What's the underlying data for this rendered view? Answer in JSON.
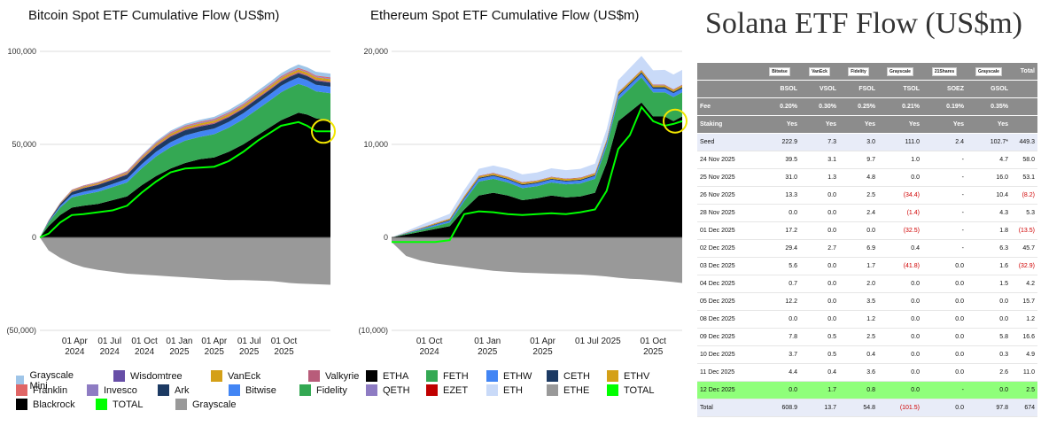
{
  "chart_data": [
    {
      "type": "area",
      "title": "Bitcoin Spot ETF Cumulative Flow (US$m)",
      "y_ticks": [
        "100,000",
        "50,000",
        "0",
        "(50,000)"
      ],
      "y_tick_values": [
        100000,
        50000,
        0,
        -50000
      ],
      "ylim": [
        -50000,
        100000
      ],
      "x_ticks": [
        [
          "01 Apr",
          "2024"
        ],
        [
          "01 Jul",
          "2024"
        ],
        [
          "01 Oct",
          "2024"
        ],
        [
          "01 Jan",
          "2025"
        ],
        [
          "01 Apr",
          "2025"
        ],
        [
          "01 Jul",
          "2025"
        ],
        [
          "01 Oct",
          "2025"
        ]
      ],
      "x_tick_values": [
        0.12,
        0.24,
        0.36,
        0.48,
        0.6,
        0.72,
        0.84
      ],
      "xlim": [
        0,
        1
      ],
      "x": [
        0,
        0.03,
        0.07,
        0.11,
        0.15,
        0.2,
        0.25,
        0.3,
        0.35,
        0.4,
        0.45,
        0.5,
        0.55,
        0.6,
        0.65,
        0.7,
        0.75,
        0.8,
        0.83,
        0.86,
        0.89,
        0.92,
        0.95,
        1.0
      ],
      "series": [
        {
          "name": "Blackrock",
          "color": "#000000",
          "values": [
            0,
            6000,
            12000,
            16000,
            17000,
            18000,
            20000,
            22000,
            28000,
            33000,
            37000,
            40000,
            42000,
            43000,
            46000,
            50000,
            55000,
            60000,
            63000,
            65000,
            67000,
            66000,
            64000,
            63000
          ]
        },
        {
          "name": "Fidelity",
          "color": "#34a853",
          "values": [
            0,
            2000,
            4000,
            5500,
            6000,
            6500,
            7000,
            7500,
            9000,
            10500,
            11500,
            12000,
            12000,
            12500,
            13000,
            13500,
            14000,
            14500,
            15000,
            15500,
            15500,
            15000,
            14500,
            14500
          ]
        },
        {
          "name": "Bitwise",
          "color": "#4285f4",
          "values": [
            0,
            400,
            900,
            1300,
            1500,
            1600,
            1700,
            1900,
            2200,
            2500,
            2700,
            2800,
            2900,
            3000,
            3100,
            3200,
            3300,
            3400,
            3500,
            3500,
            3500,
            3500,
            3500,
            3500
          ]
        },
        {
          "name": "Ark",
          "color": "#1c3a63",
          "values": [
            0,
            400,
            1000,
            1600,
            1900,
            2100,
            2200,
            2300,
            2500,
            2800,
            2900,
            2800,
            2700,
            2600,
            2500,
            2400,
            2400,
            2400,
            2300,
            2300,
            2300,
            2200,
            2200,
            2200
          ]
        },
        {
          "name": "Valkyrie",
          "color": "#b85c7a",
          "values": [
            0,
            100,
            200,
            300,
            350,
            400,
            400,
            450,
            500,
            550,
            600,
            600,
            600,
            600,
            600,
            600,
            600,
            600,
            600,
            600,
            600,
            600,
            600,
            600
          ]
        },
        {
          "name": "VanEck",
          "color": "#d4a017",
          "values": [
            0,
            100,
            300,
            500,
            550,
            600,
            650,
            700,
            800,
            900,
            1000,
            1000,
            1050,
            1100,
            1100,
            1150,
            1200,
            1200,
            1250,
            1250,
            1250,
            1250,
            1250,
            1250
          ]
        },
        {
          "name": "Invesco",
          "color": "#8e7cc3",
          "values": [
            0,
            50,
            150,
            250,
            300,
            300,
            320,
            340,
            360,
            380,
            400,
            400,
            400,
            400,
            400,
            400,
            400,
            400,
            400,
            400,
            400,
            400,
            400,
            400
          ]
        },
        {
          "name": "Franklin",
          "color": "#e06666",
          "values": [
            0,
            50,
            100,
            200,
            250,
            280,
            300,
            320,
            350,
            380,
            400,
            420,
            430,
            440,
            450,
            460,
            470,
            480,
            490,
            500,
            500,
            500,
            500,
            500
          ]
        },
        {
          "name": "Wisdomtree",
          "color": "#674ea7",
          "values": [
            0,
            10,
            20,
            30,
            40,
            50,
            60,
            70,
            80,
            90,
            100,
            100,
            100,
            100,
            100,
            100,
            100,
            100,
            100,
            100,
            100,
            100,
            100,
            100
          ]
        },
        {
          "name": "Grayscale Mini",
          "color": "#9fc5e8",
          "values": [
            0,
            0,
            0,
            0,
            0,
            0,
            0,
            200,
            400,
            600,
            800,
            900,
            1000,
            1100,
            1200,
            1300,
            1400,
            1500,
            1600,
            1700,
            1800,
            1900,
            2000,
            2000
          ]
        },
        {
          "name": "Grayscale",
          "color": "#999999",
          "values": [
            0,
            -7000,
            -11000,
            -14000,
            -16000,
            -17500,
            -18500,
            -19500,
            -20000,
            -20500,
            -21000,
            -21500,
            -22000,
            -22500,
            -23000,
            -23000,
            -23200,
            -23500,
            -24000,
            -24500,
            -24800,
            -25000,
            -25200,
            -25500
          ]
        },
        {
          "name": "TOTAL",
          "color": "#00ff00",
          "values": [
            0,
            2000,
            8000,
            12000,
            12500,
            13500,
            14500,
            17000,
            24000,
            30000,
            35000,
            37000,
            37500,
            38000,
            41000,
            46000,
            52000,
            57000,
            60000,
            61000,
            62000,
            60000,
            57000,
            57000
          ]
        }
      ]
    },
    {
      "type": "area",
      "title": "Ethereum Spot ETF Cumulative Flow (US$m)",
      "y_ticks": [
        "20,000",
        "10,000",
        "0",
        "(10,000)"
      ],
      "y_tick_values": [
        20000,
        10000,
        0,
        -10000
      ],
      "ylim": [
        -10000,
        20000
      ],
      "x_ticks": [
        [
          "01 Oct",
          "2024"
        ],
        [
          "01 Jan",
          "2025"
        ],
        [
          "01 Apr",
          "2025"
        ],
        [
          "01 Jul 2025",
          ""
        ],
        [
          "01 Oct",
          "2025"
        ]
      ],
      "x_tick_values": [
        0.13,
        0.33,
        0.52,
        0.71,
        0.9
      ],
      "xlim": [
        0,
        1
      ],
      "x": [
        0,
        0.05,
        0.1,
        0.15,
        0.2,
        0.25,
        0.3,
        0.35,
        0.4,
        0.45,
        0.5,
        0.55,
        0.6,
        0.65,
        0.7,
        0.74,
        0.78,
        0.82,
        0.86,
        0.9,
        0.94,
        0.97,
        1.0
      ],
      "series": [
        {
          "name": "ETHA",
          "color": "#000000",
          "values": [
            0,
            300,
            600,
            900,
            1200,
            3000,
            4500,
            4800,
            4500,
            4000,
            4200,
            4500,
            4300,
            4400,
            4800,
            8000,
            12500,
            13500,
            14500,
            13000,
            13000,
            12500,
            13000
          ]
        },
        {
          "name": "FETH",
          "color": "#34a853",
          "values": [
            0,
            100,
            200,
            300,
            400,
            900,
            1500,
            1500,
            1400,
            1300,
            1300,
            1400,
            1400,
            1400,
            1500,
            1800,
            2300,
            2500,
            2700,
            2600,
            2600,
            2600,
            2600
          ]
        },
        {
          "name": "ETHW",
          "color": "#4285f4",
          "values": [
            0,
            50,
            100,
            150,
            200,
            250,
            300,
            300,
            300,
            300,
            300,
            300,
            300,
            300,
            300,
            350,
            400,
            400,
            400,
            400,
            400,
            400,
            400
          ]
        },
        {
          "name": "CETH",
          "color": "#1c3a63",
          "values": [
            0,
            20,
            40,
            60,
            80,
            100,
            100,
            100,
            100,
            100,
            100,
            100,
            100,
            100,
            100,
            120,
            150,
            150,
            150,
            150,
            150,
            150,
            150
          ]
        },
        {
          "name": "ETHV",
          "color": "#d4a017",
          "values": [
            0,
            30,
            60,
            90,
            120,
            150,
            160,
            170,
            170,
            170,
            170,
            170,
            170,
            170,
            170,
            180,
            200,
            200,
            200,
            200,
            200,
            200,
            200
          ]
        },
        {
          "name": "QETH",
          "color": "#8e7cc3",
          "values": [
            0,
            5,
            10,
            15,
            20,
            25,
            25,
            25,
            25,
            25,
            25,
            25,
            25,
            25,
            25,
            25,
            30,
            30,
            30,
            30,
            30,
            30,
            30
          ]
        },
        {
          "name": "EZET",
          "color": "#c00000",
          "values": [
            0,
            5,
            10,
            15,
            20,
            25,
            30,
            30,
            30,
            30,
            30,
            30,
            30,
            30,
            30,
            30,
            35,
            35,
            35,
            35,
            35,
            35,
            35
          ]
        },
        {
          "name": "ETH",
          "color": "#c9daf8",
          "values": [
            0,
            150,
            300,
            400,
            500,
            650,
            750,
            800,
            850,
            850,
            850,
            900,
            900,
            950,
            1000,
            1100,
            1300,
            1400,
            1500,
            1550,
            1600,
            1600,
            1600
          ]
        },
        {
          "name": "ETHE",
          "color": "#999999",
          "values": [
            -500,
            -2000,
            -2500,
            -2800,
            -3000,
            -3200,
            -3400,
            -3600,
            -3700,
            -3800,
            -3850,
            -3900,
            -3950,
            -4000,
            -4100,
            -4200,
            -4350,
            -4450,
            -4500,
            -4600,
            -4700,
            -4800,
            -4900
          ]
        },
        {
          "name": "TOTAL",
          "color": "#00ff00",
          "values": [
            -500,
            -500,
            -500,
            -500,
            -300,
            2500,
            2800,
            2700,
            2500,
            2400,
            2500,
            2600,
            2500,
            2700,
            3000,
            5000,
            9500,
            11000,
            14000,
            12500,
            12000,
            12200,
            12500
          ]
        }
      ]
    },
    {
      "type": "table",
      "title": "Solana ETF Flow (US$m)",
      "columns": [
        "",
        "Bitwise",
        "VanEck",
        "Fidelity",
        "Grayscale",
        "21Shares",
        "Grayscale",
        "Total"
      ],
      "ticker_row": [
        "",
        "BSOL",
        "VSOL",
        "FSOL",
        "TSOL",
        "SOEZ",
        "GSOL",
        ""
      ],
      "fee_row": [
        "Fee",
        "0.20%",
        "0.30%",
        "0.25%",
        "0.21%",
        "0.19%",
        "0.35%",
        ""
      ],
      "staking_row": [
        "Staking",
        "Yes",
        "Yes",
        "Yes",
        "Yes",
        "Yes",
        "Yes",
        ""
      ],
      "rows": [
        [
          "Seed",
          "222.9",
          "7.3",
          "3.0",
          "111.0",
          "2.4",
          "102.7*",
          "449.3"
        ],
        [
          "24 Nov 2025",
          "39.5",
          "3.1",
          "9.7",
          "1.0",
          "-",
          "4.7",
          "58.0"
        ],
        [
          "25 Nov 2025",
          "31.0",
          "1.3",
          "4.8",
          "0.0",
          "-",
          "16.0",
          "53.1"
        ],
        [
          "26 Nov 2025",
          "13.3",
          "0.0",
          "2.5",
          "(34.4)",
          "-",
          "10.4",
          "(8.2)"
        ],
        [
          "28 Nov 2025",
          "0.0",
          "0.0",
          "2.4",
          "(1.4)",
          "-",
          "4.3",
          "5.3"
        ],
        [
          "01 Dec 2025",
          "17.2",
          "0.0",
          "0.0",
          "(32.5)",
          "-",
          "1.8",
          "(13.5)"
        ],
        [
          "02 Dec 2025",
          "29.4",
          "2.7",
          "6.9",
          "0.4",
          "-",
          "6.3",
          "45.7"
        ],
        [
          "03 Dec 2025",
          "5.6",
          "0.0",
          "1.7",
          "(41.8)",
          "0.0",
          "1.6",
          "(32.9)"
        ],
        [
          "04 Dec 2025",
          "0.7",
          "0.0",
          "2.0",
          "0.0",
          "0.0",
          "1.5",
          "4.2"
        ],
        [
          "05 Dec 2025",
          "12.2",
          "0.0",
          "3.5",
          "0.0",
          "0.0",
          "0.0",
          "15.7"
        ],
        [
          "08 Dec 2025",
          "0.0",
          "0.0",
          "1.2",
          "0.0",
          "0.0",
          "0.0",
          "1.2"
        ],
        [
          "09 Dec 2025",
          "7.8",
          "0.5",
          "2.5",
          "0.0",
          "0.0",
          "5.8",
          "16.6"
        ],
        [
          "10 Dec 2025",
          "3.7",
          "0.5",
          "0.4",
          "0.0",
          "0.0",
          "0.3",
          "4.9"
        ],
        [
          "11 Dec 2025",
          "4.4",
          "0.4",
          "3.6",
          "0.0",
          "0.0",
          "2.6",
          "11.0"
        ],
        [
          "12 Dec 2025",
          "0.0",
          "1.7",
          "0.8",
          "0.0",
          "-",
          "0.0",
          "2.5"
        ],
        [
          "Total",
          "608.9",
          "13.7",
          "54.8",
          "(101.5)",
          "0.0",
          "97.8",
          "674"
        ]
      ],
      "highlight_row": "12 Dec 2025"
    }
  ],
  "legends": {
    "btc": [
      [
        "Grayscale Mini",
        "Wisdomtree",
        "VanEck",
        "Valkyrie"
      ],
      [
        "Franklin",
        "Invesco",
        "Ark",
        "Bitwise",
        "Fidelity"
      ],
      [
        "Blackrock",
        "TOTAL",
        "Grayscale"
      ]
    ],
    "eth": [
      [
        "ETHA",
        "FETH",
        "ETHW",
        "CETH",
        "ETHV"
      ],
      [
        "QETH",
        "EZET",
        "ETH",
        "ETHE",
        "TOTAL"
      ]
    ]
  },
  "colors": {
    "highlight_circle": "#f2e600",
    "total_line": "#00ff00",
    "table_header": "#8c8c8c",
    "table_highlight": "#8fff7a"
  }
}
